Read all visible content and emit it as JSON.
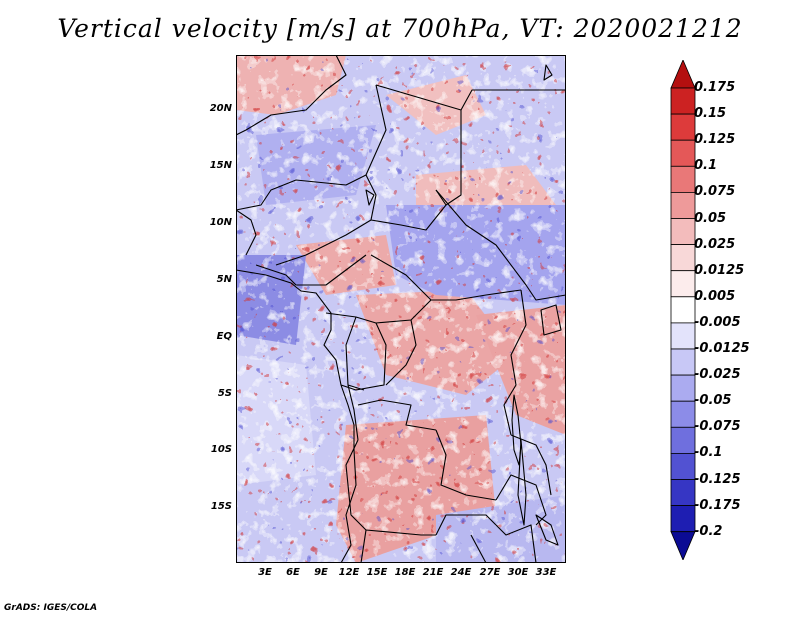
{
  "title": "Vertical velocity [m/s] at 700hPa, VT: 2020021212",
  "credit": "GrADS: IGES/COLA",
  "map": {
    "latitude_labels": [
      "20N",
      "15N",
      "10N",
      "5N",
      "EQ",
      "5S",
      "10S",
      "15S"
    ],
    "longitude_labels": [
      "3E",
      "6E",
      "9E",
      "12E",
      "15E",
      "18E",
      "21E",
      "24E",
      "27E",
      "30E",
      "33E"
    ]
  },
  "colorbar": {
    "levels": [
      "0.175",
      "0.15",
      "0.125",
      "0.1",
      "0.075",
      "0.05",
      "0.025",
      "0.0125",
      "0.005",
      "-0.005",
      "-0.0125",
      "-0.025",
      "-0.05",
      "-0.075",
      "-0.1",
      "-0.125",
      "-0.175",
      "-0.2"
    ],
    "colors": [
      "#b40f0f",
      "#cc2222",
      "#dd3b3b",
      "#e45858",
      "#e97878",
      "#ee9a9a",
      "#f3bcbc",
      "#f8d8d8",
      "#fcecec",
      "#ffffff",
      "#e3e3fb",
      "#c8c8f6",
      "#ababf0",
      "#8c8ce8",
      "#6f6fde",
      "#5252d2",
      "#3636c4",
      "#1e1eb2",
      "#0b0b94"
    ]
  }
}
